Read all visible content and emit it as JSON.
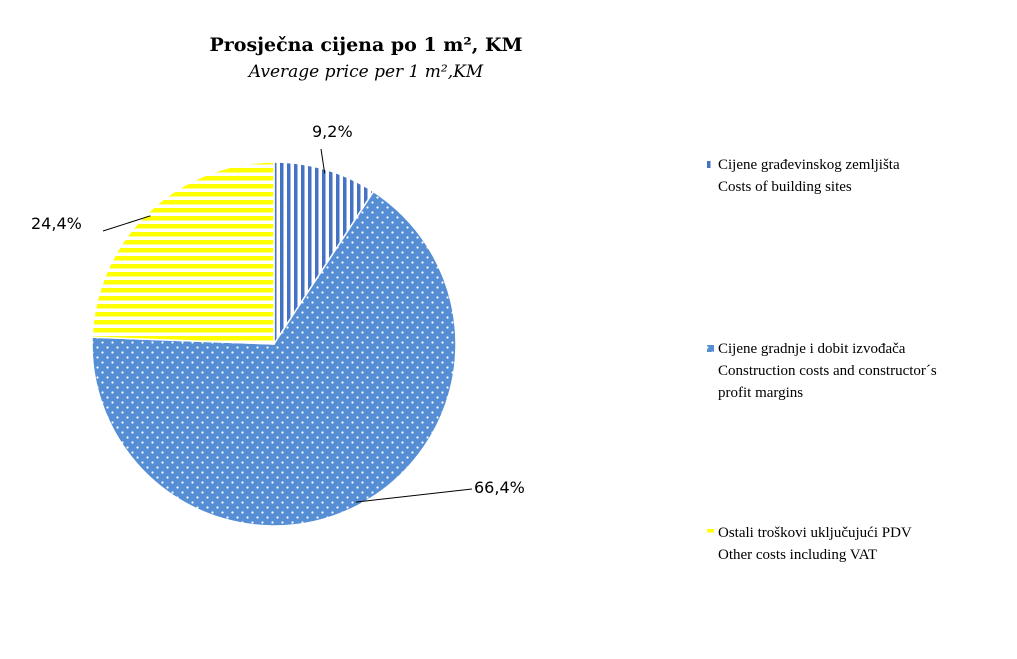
{
  "chart_data": {
    "type": "pie",
    "title": "Prosječna cijena po 1 m², KM",
    "subtitle": "Average price per 1 m²,KM",
    "slices": [
      {
        "label_line1": "Cijene građevinskog zemljišta",
        "label_line2": "Costs of building sites",
        "label_line3": "",
        "value": 9.2,
        "value_label": "9,2%",
        "color": "#4472C4",
        "pattern": "vertical-stripes"
      },
      {
        "label_line1": "Cijene gradnje i dobit izvođača",
        "label_line2": "Construction costs and constructor´s",
        "label_line3": "profit margins",
        "value": 66.4,
        "value_label": "66,4%",
        "color": "#558ED5",
        "pattern": "dots"
      },
      {
        "label_line1": "Ostali troškovi uključujući PDV",
        "label_line2": "Other costs including VAT",
        "label_line3": "",
        "value": 24.4,
        "value_label": "24,4%",
        "color": "#FFFF00",
        "pattern": "horizontal-stripes"
      }
    ],
    "start_angle": "12 o'clock",
    "direction": "clockwise",
    "legend_position": "right"
  }
}
